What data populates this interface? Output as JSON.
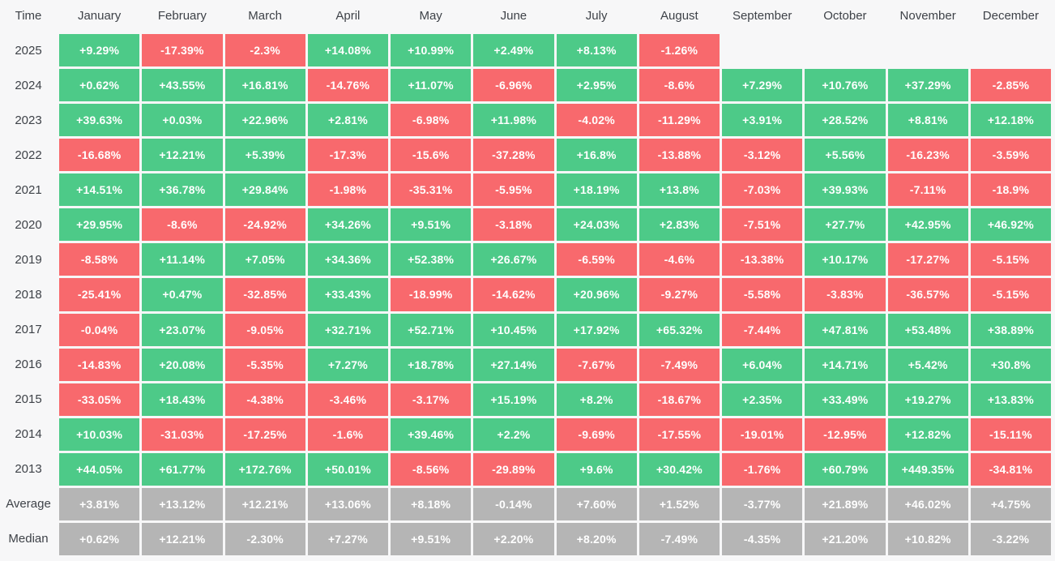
{
  "colors": {
    "positive": "#4dca88",
    "negative": "#f8696d",
    "neutral": "#b5b5b5",
    "background": "#f7f7f8",
    "label_text": "#3e4248",
    "cell_text": "#ffffff"
  },
  "table": {
    "corner_label": "Time",
    "months": [
      "January",
      "February",
      "March",
      "April",
      "May",
      "June",
      "July",
      "August",
      "September",
      "October",
      "November",
      "December"
    ],
    "rows": [
      {
        "label": "2025",
        "type": "year",
        "cells": [
          "+9.29%",
          "-17.39%",
          "-2.3%",
          "+14.08%",
          "+10.99%",
          "+2.49%",
          "+8.13%",
          "-1.26%",
          null,
          null,
          null,
          null
        ]
      },
      {
        "label": "2024",
        "type": "year",
        "cells": [
          "+0.62%",
          "+43.55%",
          "+16.81%",
          "-14.76%",
          "+11.07%",
          "-6.96%",
          "+2.95%",
          "-8.6%",
          "+7.29%",
          "+10.76%",
          "+37.29%",
          "-2.85%"
        ]
      },
      {
        "label": "2023",
        "type": "year",
        "cells": [
          "+39.63%",
          "+0.03%",
          "+22.96%",
          "+2.81%",
          "-6.98%",
          "+11.98%",
          "-4.02%",
          "-11.29%",
          "+3.91%",
          "+28.52%",
          "+8.81%",
          "+12.18%"
        ]
      },
      {
        "label": "2022",
        "type": "year",
        "cells": [
          "-16.68%",
          "+12.21%",
          "+5.39%",
          "-17.3%",
          "-15.6%",
          "-37.28%",
          "+16.8%",
          "-13.88%",
          "-3.12%",
          "+5.56%",
          "-16.23%",
          "-3.59%"
        ]
      },
      {
        "label": "2021",
        "type": "year",
        "cells": [
          "+14.51%",
          "+36.78%",
          "+29.84%",
          "-1.98%",
          "-35.31%",
          "-5.95%",
          "+18.19%",
          "+13.8%",
          "-7.03%",
          "+39.93%",
          "-7.11%",
          "-18.9%"
        ]
      },
      {
        "label": "2020",
        "type": "year",
        "cells": [
          "+29.95%",
          "-8.6%",
          "-24.92%",
          "+34.26%",
          "+9.51%",
          "-3.18%",
          "+24.03%",
          "+2.83%",
          "-7.51%",
          "+27.7%",
          "+42.95%",
          "+46.92%"
        ]
      },
      {
        "label": "2019",
        "type": "year",
        "cells": [
          "-8.58%",
          "+11.14%",
          "+7.05%",
          "+34.36%",
          "+52.38%",
          "+26.67%",
          "-6.59%",
          "-4.6%",
          "-13.38%",
          "+10.17%",
          "-17.27%",
          "-5.15%"
        ]
      },
      {
        "label": "2018",
        "type": "year",
        "cells": [
          "-25.41%",
          "+0.47%",
          "-32.85%",
          "+33.43%",
          "-18.99%",
          "-14.62%",
          "+20.96%",
          "-9.27%",
          "-5.58%",
          "-3.83%",
          "-36.57%",
          "-5.15%"
        ]
      },
      {
        "label": "2017",
        "type": "year",
        "cells": [
          "-0.04%",
          "+23.07%",
          "-9.05%",
          "+32.71%",
          "+52.71%",
          "+10.45%",
          "+17.92%",
          "+65.32%",
          "-7.44%",
          "+47.81%",
          "+53.48%",
          "+38.89%"
        ]
      },
      {
        "label": "2016",
        "type": "year",
        "cells": [
          "-14.83%",
          "+20.08%",
          "-5.35%",
          "+7.27%",
          "+18.78%",
          "+27.14%",
          "-7.67%",
          "-7.49%",
          "+6.04%",
          "+14.71%",
          "+5.42%",
          "+30.8%"
        ]
      },
      {
        "label": "2015",
        "type": "year",
        "cells": [
          "-33.05%",
          "+18.43%",
          "-4.38%",
          "-3.46%",
          "-3.17%",
          "+15.19%",
          "+8.2%",
          "-18.67%",
          "+2.35%",
          "+33.49%",
          "+19.27%",
          "+13.83%"
        ]
      },
      {
        "label": "2014",
        "type": "year",
        "cells": [
          "+10.03%",
          "-31.03%",
          "-17.25%",
          "-1.6%",
          "+39.46%",
          "+2.2%",
          "-9.69%",
          "-17.55%",
          "-19.01%",
          "-12.95%",
          "+12.82%",
          "-15.11%"
        ]
      },
      {
        "label": "2013",
        "type": "year",
        "cells": [
          "+44.05%",
          "+61.77%",
          "+172.76%",
          "+50.01%",
          "-8.56%",
          "-29.89%",
          "+9.6%",
          "+30.42%",
          "-1.76%",
          "+60.79%",
          "+449.35%",
          "-34.81%"
        ]
      },
      {
        "label": "Average",
        "type": "summary",
        "cells": [
          "+3.81%",
          "+13.12%",
          "+12.21%",
          "+13.06%",
          "+8.18%",
          "-0.14%",
          "+7.60%",
          "+1.52%",
          "-3.77%",
          "+21.89%",
          "+46.02%",
          "+4.75%"
        ]
      },
      {
        "label": "Median",
        "type": "summary",
        "cells": [
          "+0.62%",
          "+12.21%",
          "-2.30%",
          "+7.27%",
          "+9.51%",
          "+2.20%",
          "+8.20%",
          "-7.49%",
          "-4.35%",
          "+21.20%",
          "+10.82%",
          "-3.22%"
        ]
      }
    ]
  },
  "chart_data": {
    "type": "heatmap",
    "xlabel": "Time",
    "x": [
      "January",
      "February",
      "March",
      "April",
      "May",
      "June",
      "July",
      "August",
      "September",
      "October",
      "November",
      "December"
    ],
    "series": [
      {
        "name": "2025",
        "values": [
          9.29,
          -17.39,
          -2.3,
          14.08,
          10.99,
          2.49,
          8.13,
          -1.26,
          null,
          null,
          null,
          null
        ]
      },
      {
        "name": "2024",
        "values": [
          0.62,
          43.55,
          16.81,
          -14.76,
          11.07,
          -6.96,
          2.95,
          -8.6,
          7.29,
          10.76,
          37.29,
          -2.85
        ]
      },
      {
        "name": "2023",
        "values": [
          39.63,
          0.03,
          22.96,
          2.81,
          -6.98,
          11.98,
          -4.02,
          -11.29,
          3.91,
          28.52,
          8.81,
          12.18
        ]
      },
      {
        "name": "2022",
        "values": [
          -16.68,
          12.21,
          5.39,
          -17.3,
          -15.6,
          -37.28,
          16.8,
          -13.88,
          -3.12,
          5.56,
          -16.23,
          -3.59
        ]
      },
      {
        "name": "2021",
        "values": [
          14.51,
          36.78,
          29.84,
          -1.98,
          -35.31,
          -5.95,
          18.19,
          13.8,
          -7.03,
          39.93,
          -7.11,
          -18.9
        ]
      },
      {
        "name": "2020",
        "values": [
          29.95,
          -8.6,
          -24.92,
          34.26,
          9.51,
          -3.18,
          24.03,
          2.83,
          -7.51,
          27.7,
          42.95,
          46.92
        ]
      },
      {
        "name": "2019",
        "values": [
          -8.58,
          11.14,
          7.05,
          34.36,
          52.38,
          26.67,
          -6.59,
          -4.6,
          -13.38,
          10.17,
          -17.27,
          -5.15
        ]
      },
      {
        "name": "2018",
        "values": [
          -25.41,
          0.47,
          -32.85,
          33.43,
          -18.99,
          -14.62,
          20.96,
          -9.27,
          -5.58,
          -3.83,
          -36.57,
          -5.15
        ]
      },
      {
        "name": "2017",
        "values": [
          -0.04,
          23.07,
          -9.05,
          32.71,
          52.71,
          10.45,
          17.92,
          65.32,
          -7.44,
          47.81,
          53.48,
          38.89
        ]
      },
      {
        "name": "2016",
        "values": [
          -14.83,
          20.08,
          -5.35,
          7.27,
          18.78,
          27.14,
          -7.67,
          -7.49,
          6.04,
          14.71,
          5.42,
          30.8
        ]
      },
      {
        "name": "2015",
        "values": [
          -33.05,
          18.43,
          -4.38,
          -3.46,
          -3.17,
          15.19,
          8.2,
          -18.67,
          2.35,
          33.49,
          19.27,
          13.83
        ]
      },
      {
        "name": "2014",
        "values": [
          10.03,
          -31.03,
          -17.25,
          -1.6,
          39.46,
          2.2,
          -9.69,
          -17.55,
          -19.01,
          -12.95,
          12.82,
          -15.11
        ]
      },
      {
        "name": "2013",
        "values": [
          44.05,
          61.77,
          172.76,
          50.01,
          -8.56,
          -29.89,
          9.6,
          30.42,
          -1.76,
          60.79,
          449.35,
          -34.81
        ]
      },
      {
        "name": "Average",
        "values": [
          3.81,
          13.12,
          12.21,
          13.06,
          8.18,
          -0.14,
          7.6,
          1.52,
          -3.77,
          21.89,
          46.02,
          4.75
        ]
      },
      {
        "name": "Median",
        "values": [
          0.62,
          12.21,
          -2.3,
          7.27,
          9.51,
          2.2,
          8.2,
          -7.49,
          -4.35,
          21.2,
          10.82,
          -3.22
        ]
      }
    ],
    "legend": "none",
    "grid": false,
    "value_unit": "%",
    "color_rule": "positive=green, negative=red, summary-rows=gray"
  }
}
